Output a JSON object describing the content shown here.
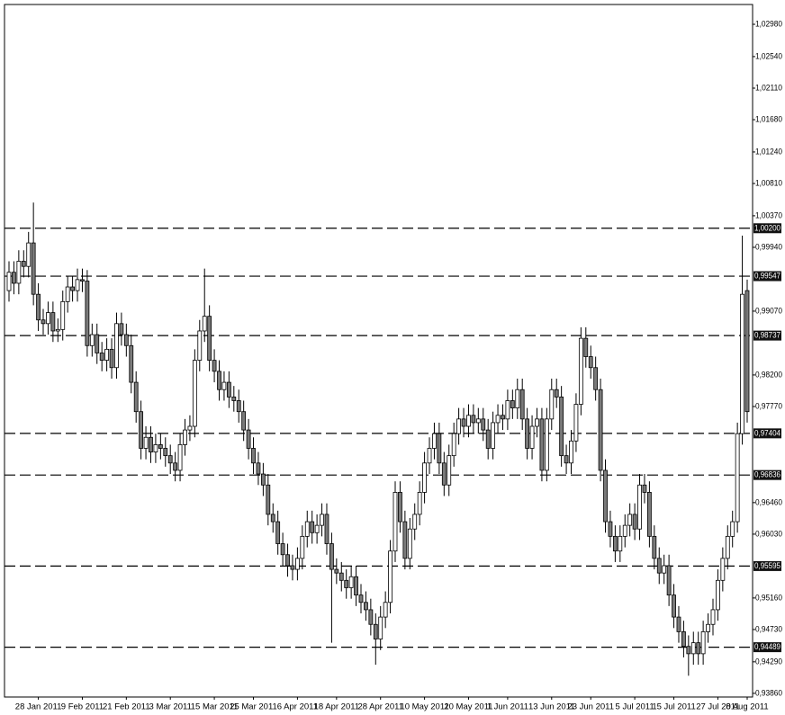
{
  "chart_data": {
    "type": "candlestick",
    "ylim": [
      0.9381,
      1.0325
    ],
    "yticks": [
      {
        "value": 1.0298,
        "label": "1,02980"
      },
      {
        "value": 1.0254,
        "label": "1,02540"
      },
      {
        "value": 1.0211,
        "label": "1,02110"
      },
      {
        "value": 1.0168,
        "label": "1,01680"
      },
      {
        "value": 1.0124,
        "label": "1,01240"
      },
      {
        "value": 1.0081,
        "label": "1,00810"
      },
      {
        "value": 1.0037,
        "label": "1,00370"
      },
      {
        "value": 0.9994,
        "label": "0,99940"
      },
      {
        "value": 0.9907,
        "label": "0,99070"
      },
      {
        "value": 0.982,
        "label": "0,98200"
      },
      {
        "value": 0.9777,
        "label": "0,97770"
      },
      {
        "value": 0.9646,
        "label": "0,96460"
      },
      {
        "value": 0.9603,
        "label": "0,96030"
      },
      {
        "value": 0.9516,
        "label": "0,95160"
      },
      {
        "value": 0.9473,
        "label": "0,94730"
      },
      {
        "value": 0.9429,
        "label": "0,94290"
      },
      {
        "value": 0.9386,
        "label": "0,93860"
      }
    ],
    "levels": [
      {
        "value": 1.002,
        "label": "1,00200"
      },
      {
        "value": 0.99547,
        "label": "0,99547"
      },
      {
        "value": 0.98737,
        "label": "0,98737"
      },
      {
        "value": 0.97404,
        "label": "0,97404"
      },
      {
        "value": 0.96836,
        "label": "0,96836"
      },
      {
        "value": 0.95595,
        "label": "0,95595"
      },
      {
        "value": 0.94489,
        "label": "0,94489"
      }
    ],
    "up_color": "#ffffff",
    "down_color": "#7a7a7a",
    "categories": [
      null,
      null,
      null,
      null,
      null,
      null,
      "28 Jan 2011",
      null,
      null,
      null,
      null,
      null,
      null,
      null,
      null,
      "9 Feb 2011",
      null,
      null,
      null,
      null,
      null,
      null,
      null,
      null,
      "21 Feb 2011",
      null,
      null,
      null,
      null,
      null,
      null,
      null,
      null,
      "3 Mar 2011",
      null,
      null,
      null,
      null,
      null,
      null,
      null,
      null,
      "15 Mar 2011",
      null,
      null,
      null,
      null,
      null,
      null,
      null,
      "25 Mar 2011",
      null,
      null,
      null,
      null,
      null,
      null,
      null,
      null,
      "6 Apr 2011",
      null,
      null,
      null,
      null,
      null,
      null,
      null,
      "18 Apr 2011",
      null,
      null,
      null,
      null,
      null,
      null,
      null,
      null,
      "28 Apr 2011",
      null,
      null,
      null,
      null,
      null,
      null,
      null,
      null,
      "10 May 2011",
      null,
      null,
      null,
      null,
      null,
      null,
      null,
      null,
      "20 May 2011",
      null,
      null,
      null,
      null,
      null,
      null,
      null,
      "1 Jun 2011",
      null,
      null,
      null,
      null,
      null,
      null,
      null,
      null,
      "13 Jun 2011",
      null,
      null,
      null,
      null,
      null,
      null,
      null,
      "23 Jun 2011",
      null,
      null,
      null,
      null,
      null,
      null,
      null,
      null,
      "5 Jul 2011",
      null,
      null,
      null,
      null,
      null,
      null,
      null,
      "15 Jul 2011",
      null,
      null,
      null,
      null,
      null,
      null,
      null,
      null,
      "27 Jul 2011",
      null,
      null,
      null,
      null,
      null,
      "8 Aug 2011"
    ],
    "open": [
      0.9935,
      0.996,
      0.9945,
      0.9975,
      0.9968,
      1.0,
      0.993,
      0.9895,
      0.989,
      0.9905,
      0.988,
      0.9882,
      0.992,
      0.994,
      0.9935,
      0.995,
      0.9948,
      0.986,
      0.9875,
      0.985,
      0.984,
      0.9855,
      0.983,
      0.989,
      0.9875,
      0.986,
      0.981,
      0.977,
      0.972,
      0.9735,
      0.9715,
      0.9725,
      0.972,
      0.971,
      0.97,
      0.969,
      0.9725,
      0.9745,
      0.975,
      0.984,
      0.988,
      0.99,
      0.984,
      0.9825,
      0.98,
      0.981,
      0.979,
      0.9785,
      0.977,
      0.9745,
      0.972,
      0.97,
      0.9685,
      0.967,
      0.963,
      0.962,
      0.959,
      0.9575,
      0.956,
      0.9555,
      0.957,
      0.96,
      0.962,
      0.9605,
      0.9615,
      0.963,
      0.959,
      0.9555,
      0.955,
      0.954,
      0.953,
      0.9545,
      0.952,
      0.951,
      0.95,
      0.948,
      0.946,
      0.949,
      0.951,
      0.958,
      0.966,
      0.962,
      0.957,
      0.961,
      0.963,
      0.966,
      0.97,
      0.972,
      0.974,
      0.97,
      0.967,
      0.971,
      0.974,
      0.976,
      0.975,
      0.9765,
      0.9755,
      0.976,
      0.9745,
      0.972,
      0.9755,
      0.9765,
      0.976,
      0.9785,
      0.9775,
      0.98,
      0.976,
      0.972,
      0.975,
      0.976,
      0.969,
      0.976,
      0.98,
      0.979,
      0.971,
      0.97,
      0.973,
      0.978,
      0.987,
      0.9845,
      0.983,
      0.98,
      0.969,
      0.962,
      0.96,
      0.958,
      0.96,
      0.9615,
      0.963,
      0.961,
      0.967,
      0.966,
      0.96,
      0.957,
      0.955,
      0.956,
      0.952,
      0.949,
      0.947,
      0.945,
      0.944,
      0.9455,
      0.944,
      0.947,
      0.948,
      0.95,
      0.954,
      0.957,
      0.96,
      0.962,
      0.974,
      0.9935
    ],
    "high": [
      0.9975,
      0.9975,
      0.999,
      0.999,
      1.0015,
      1.0055,
      0.9945,
      0.991,
      0.992,
      0.992,
      0.9897,
      0.9935,
      0.9955,
      0.9955,
      0.9965,
      0.9965,
      0.9963,
      0.989,
      0.989,
      0.9865,
      0.987,
      0.987,
      0.9905,
      0.9905,
      0.989,
      0.9875,
      0.9825,
      0.9785,
      0.975,
      0.975,
      0.974,
      0.974,
      0.9735,
      0.9725,
      0.9715,
      0.974,
      0.976,
      0.9765,
      0.9855,
      0.9895,
      0.9965,
      0.9915,
      0.9855,
      0.984,
      0.9825,
      0.9825,
      0.9805,
      0.98,
      0.9785,
      0.976,
      0.9735,
      0.9715,
      0.97,
      0.9685,
      0.9645,
      0.9635,
      0.9605,
      0.959,
      0.9575,
      0.9585,
      0.9615,
      0.9635,
      0.9635,
      0.963,
      0.9645,
      0.9645,
      0.9605,
      0.957,
      0.9565,
      0.9555,
      0.956,
      0.956,
      0.9535,
      0.9525,
      0.9515,
      0.9495,
      0.9505,
      0.9525,
      0.9595,
      0.9675,
      0.9675,
      0.9635,
      0.9625,
      0.9645,
      0.9675,
      0.9715,
      0.9735,
      0.9755,
      0.9755,
      0.9715,
      0.9725,
      0.9755,
      0.9775,
      0.9775,
      0.978,
      0.978,
      0.9775,
      0.9775,
      0.976,
      0.977,
      0.978,
      0.978,
      0.98,
      0.98,
      0.9815,
      0.9815,
      0.9775,
      0.9765,
      0.9775,
      0.9775,
      0.9775,
      0.9815,
      0.9815,
      0.9805,
      0.9725,
      0.9745,
      0.9795,
      0.9885,
      0.9885,
      0.986,
      0.9845,
      0.9815,
      0.9705,
      0.9635,
      0.9615,
      0.9615,
      0.963,
      0.9645,
      0.9645,
      0.9685,
      0.9685,
      0.9675,
      0.9615,
      0.9585,
      0.9575,
      0.9575,
      0.9535,
      0.9505,
      0.9485,
      0.9465,
      0.947,
      0.947,
      0.9485,
      0.9495,
      0.9515,
      0.9555,
      0.9585,
      0.9615,
      0.9635,
      0.9755,
      1.001,
      0.995
    ],
    "low": [
      0.992,
      0.993,
      0.993,
      0.9953,
      0.9953,
      0.9915,
      0.988,
      0.9875,
      0.9875,
      0.9865,
      0.9865,
      0.9867,
      0.9905,
      0.992,
      0.992,
      0.9933,
      0.9845,
      0.9845,
      0.9835,
      0.9825,
      0.9825,
      0.9815,
      0.9815,
      0.986,
      0.9845,
      0.9795,
      0.9755,
      0.9705,
      0.9705,
      0.97,
      0.97,
      0.9705,
      0.9695,
      0.9685,
      0.9675,
      0.9675,
      0.971,
      0.973,
      0.9735,
      0.9825,
      0.9865,
      0.9825,
      0.981,
      0.9785,
      0.9785,
      0.9775,
      0.977,
      0.9755,
      0.973,
      0.9705,
      0.9685,
      0.967,
      0.9655,
      0.9615,
      0.9605,
      0.9575,
      0.956,
      0.9545,
      0.954,
      0.954,
      0.9555,
      0.9585,
      0.959,
      0.959,
      0.96,
      0.9575,
      0.9455,
      0.9535,
      0.9525,
      0.9515,
      0.9515,
      0.9505,
      0.9495,
      0.9485,
      0.9465,
      0.9425,
      0.9445,
      0.9475,
      0.9495,
      0.9565,
      0.9605,
      0.9555,
      0.9555,
      0.9595,
      0.9615,
      0.9645,
      0.9685,
      0.9705,
      0.9685,
      0.9655,
      0.9655,
      0.9695,
      0.9725,
      0.9735,
      0.9735,
      0.974,
      0.974,
      0.973,
      0.9705,
      0.9705,
      0.974,
      0.9745,
      0.9745,
      0.976,
      0.976,
      0.9745,
      0.9705,
      0.9705,
      0.9735,
      0.9675,
      0.9675,
      0.9745,
      0.9775,
      0.9695,
      0.9685,
      0.9685,
      0.9715,
      0.9765,
      0.983,
      0.9815,
      0.9785,
      0.9675,
      0.9605,
      0.9585,
      0.9565,
      0.9565,
      0.9585,
      0.96,
      0.9595,
      0.9595,
      0.9645,
      0.9585,
      0.9555,
      0.9535,
      0.9535,
      0.9505,
      0.9475,
      0.9455,
      0.9435,
      0.941,
      0.9425,
      0.9425,
      0.9425,
      0.9455,
      0.9465,
      0.9485,
      0.9525,
      0.9555,
      0.9585,
      0.9605,
      0.9725,
      0.9755
    ],
    "close": [
      0.996,
      0.9945,
      0.9975,
      0.9968,
      1.0,
      0.993,
      0.9895,
      0.989,
      0.9905,
      0.988,
      0.9882,
      0.992,
      0.994,
      0.9935,
      0.995,
      0.9948,
      0.986,
      0.9875,
      0.985,
      0.984,
      0.9855,
      0.983,
      0.989,
      0.9875,
      0.986,
      0.981,
      0.977,
      0.972,
      0.9735,
      0.9715,
      0.9725,
      0.972,
      0.971,
      0.97,
      0.969,
      0.9725,
      0.9745,
      0.975,
      0.984,
      0.988,
      0.99,
      0.984,
      0.9825,
      0.98,
      0.981,
      0.979,
      0.9785,
      0.977,
      0.9745,
      0.972,
      0.97,
      0.9685,
      0.967,
      0.963,
      0.962,
      0.959,
      0.9575,
      0.956,
      0.9555,
      0.957,
      0.96,
      0.962,
      0.9605,
      0.9615,
      0.963,
      0.959,
      0.9555,
      0.955,
      0.954,
      0.953,
      0.9545,
      0.952,
      0.951,
      0.95,
      0.948,
      0.946,
      0.949,
      0.951,
      0.958,
      0.966,
      0.962,
      0.957,
      0.961,
      0.963,
      0.966,
      0.97,
      0.972,
      0.974,
      0.97,
      0.967,
      0.971,
      0.974,
      0.976,
      0.975,
      0.9765,
      0.9755,
      0.976,
      0.9745,
      0.972,
      0.9755,
      0.9765,
      0.976,
      0.9785,
      0.9775,
      0.98,
      0.976,
      0.972,
      0.975,
      0.976,
      0.969,
      0.976,
      0.98,
      0.979,
      0.971,
      0.97,
      0.973,
      0.978,
      0.987,
      0.9845,
      0.983,
      0.98,
      0.969,
      0.962,
      0.96,
      0.958,
      0.96,
      0.9615,
      0.963,
      0.961,
      0.967,
      0.966,
      0.96,
      0.957,
      0.955,
      0.956,
      0.952,
      0.949,
      0.947,
      0.945,
      0.944,
      0.9455,
      0.944,
      0.947,
      0.948,
      0.95,
      0.954,
      0.957,
      0.96,
      0.962,
      0.974,
      0.993,
      0.977
    ]
  }
}
